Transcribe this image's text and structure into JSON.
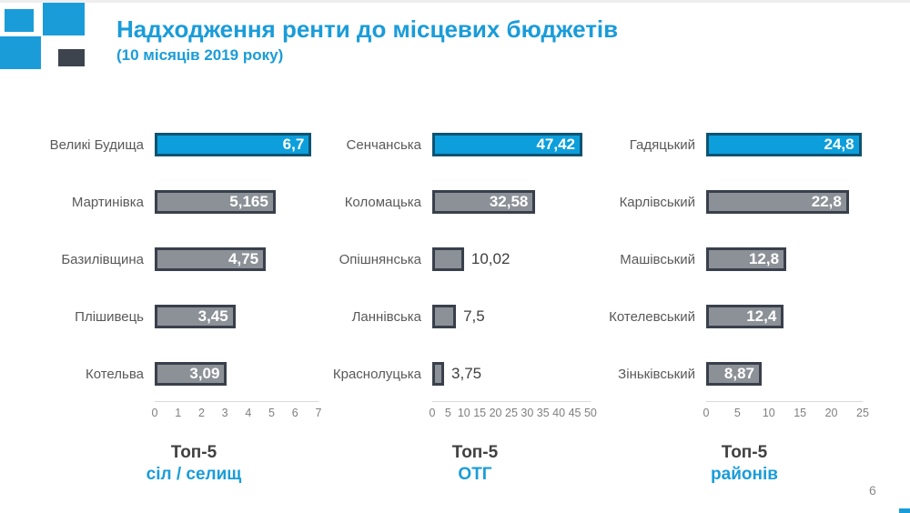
{
  "header": {
    "title": "Надходження ренти до місцевих бюджетів",
    "subtitle": "(10 місяців 2019 року)"
  },
  "footer": {
    "page_number": "6"
  },
  "colors": {
    "accent_blue": "#1A9CD9",
    "bar_blue_fill": "#0C9FDB",
    "bar_blue_border": "#0E5372",
    "bar_gray_fill": "#8B9197",
    "bar_gray_border": "#39404B",
    "category_label": "#595959",
    "tick_label": "#7F7F7F",
    "caption_dark": "#404040",
    "axis_line": "#D9D9D9",
    "logo_dark": "#3D444E"
  },
  "chart_data": [
    {
      "type": "bar",
      "orientation": "horizontal",
      "caption": [
        "Топ-5",
        "сіл / селищ"
      ],
      "categories": [
        "Великі Будища",
        "Мартинівка",
        "Базилівщина",
        "Плішивець",
        "Котельва"
      ],
      "values": [
        6.7,
        5.165,
        4.75,
        3.45,
        3.09
      ],
      "value_labels": [
        "6,7",
        "5,165",
        "4,75",
        "3,45",
        "3,09"
      ],
      "xlim": [
        0,
        7
      ],
      "ticks": [
        "0",
        "1",
        "2",
        "3",
        "4",
        "5",
        "6",
        "7"
      ],
      "highlight_index": 0,
      "grid": false,
      "legend": false
    },
    {
      "type": "bar",
      "orientation": "horizontal",
      "caption": [
        "Топ-5",
        "ОТГ"
      ],
      "categories": [
        "Сенчанська",
        "Коломацька",
        "Опішнянська",
        "Ланнівська",
        "Краснолуцька"
      ],
      "values": [
        47.42,
        32.58,
        10.02,
        7.5,
        3.75
      ],
      "value_labels": [
        "47,42",
        "32,58",
        "10,02",
        "7,5",
        "3,75"
      ],
      "xlim": [
        0,
        50
      ],
      "ticks": [
        "0",
        "5",
        "10",
        "15",
        "20",
        "25",
        "30",
        "35",
        "40",
        "45",
        "50"
      ],
      "highlight_index": 0,
      "grid": false,
      "legend": false
    },
    {
      "type": "bar",
      "orientation": "horizontal",
      "caption": [
        "Топ-5",
        "районів"
      ],
      "categories": [
        "Гадяцький",
        "Карлівський",
        "Машівський",
        "Котелевський",
        "Зіньківський"
      ],
      "values": [
        24.8,
        22.8,
        12.8,
        12.4,
        8.87
      ],
      "value_labels": [
        "24,8",
        "22,8",
        "12,8",
        "12,4",
        "8,87"
      ],
      "xlim": [
        0,
        25
      ],
      "ticks": [
        "0",
        "5",
        "10",
        "15",
        "20",
        "25"
      ],
      "highlight_index": 0,
      "grid": false,
      "legend": false
    }
  ]
}
